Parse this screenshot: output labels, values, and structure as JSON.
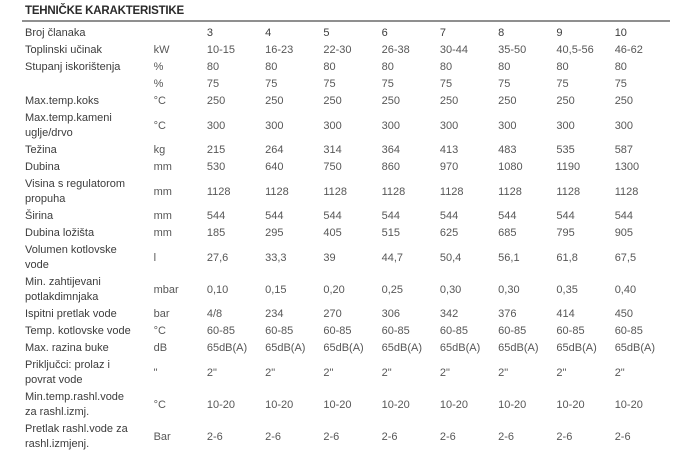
{
  "title": "TEHNIČKE KARAKTERISTIKE",
  "table": {
    "header": {
      "label": "Broj članaka",
      "unit": "",
      "values": [
        "3",
        "4",
        "5",
        "6",
        "7",
        "8",
        "9",
        "10"
      ]
    },
    "rows": [
      {
        "label": "Toplinski učinak",
        "unit": "kW",
        "values": [
          "10-15",
          "16-23",
          "22-30",
          "26-38",
          "30-44",
          "35-50",
          "40,5-56",
          "46-62"
        ]
      },
      {
        "label": "Stupanj iskorištenja",
        "unit": "%",
        "values": [
          "80",
          "80",
          "80",
          "80",
          "80",
          "80",
          "80",
          "80"
        ]
      },
      {
        "label": "",
        "unit": "%",
        "values": [
          "75",
          "75",
          "75",
          "75",
          "75",
          "75",
          "75",
          "75"
        ]
      },
      {
        "label": "Max.temp.koks",
        "unit": "°C",
        "values": [
          "250",
          "250",
          "250",
          "250",
          "250",
          "250",
          "250",
          "250"
        ]
      },
      {
        "label": "Max.temp.kameni\nuglje/drvo",
        "unit": "°C",
        "values": [
          "300",
          "300",
          "300",
          "300",
          "300",
          "300",
          "300",
          "300"
        ]
      },
      {
        "label": "Težina",
        "unit": "kg",
        "values": [
          "215",
          "264",
          "314",
          "364",
          "413",
          "483",
          "535",
          "587"
        ]
      },
      {
        "label": "Dubina",
        "unit": "mm",
        "values": [
          "530",
          "640",
          "750",
          "860",
          "970",
          "1080",
          "1190",
          "1300"
        ]
      },
      {
        "label": "Visina s regulatorom\npropuha",
        "unit": "mm",
        "values": [
          "1128",
          "1128",
          "1128",
          "1128",
          "1128",
          "1128",
          "1128",
          "1128"
        ]
      },
      {
        "label": "Širina",
        "unit": "mm",
        "values": [
          "544",
          "544",
          "544",
          "544",
          "544",
          "544",
          "544",
          "544"
        ]
      },
      {
        "label": "Dubina ložišta",
        "unit": "mm",
        "values": [
          "185",
          "295",
          "405",
          "515",
          "625",
          "685",
          "795",
          "905"
        ]
      },
      {
        "label": "Volumen kotlovske\nvode",
        "unit": "l",
        "values": [
          "27,6",
          "33,3",
          "39",
          "44,7",
          "50,4",
          "56,1",
          "61,8",
          "67,5"
        ]
      },
      {
        "label": "Min. zahtijevani\npotlakdimnjaka",
        "unit": "mbar",
        "values": [
          "0,10",
          "0,15",
          "0,20",
          "0,25",
          "0,30",
          "0,30",
          "0,35",
          "0,40"
        ]
      },
      {
        "label": "Ispitni pretlak vode",
        "unit": "bar",
        "values": [
          "4/8",
          "234",
          "270",
          "306",
          "342",
          "376",
          "414",
          "450"
        ]
      },
      {
        "label": "Temp. kotlovske vode",
        "unit": "°C",
        "values": [
          "60-85",
          "60-85",
          "60-85",
          "60-85",
          "60-85",
          "60-85",
          "60-85",
          "60-85"
        ]
      },
      {
        "label": "Max. razina buke",
        "unit": "dB",
        "values": [
          "65dB(A)",
          "65dB(A)",
          "65dB(A)",
          "65dB(A)",
          "65dB(A)",
          "65dB(A)",
          "65dB(A)",
          "65dB(A)"
        ]
      },
      {
        "label": "Priključci: prolaz i\npovrat vode",
        "unit": "\"",
        "values": [
          "2\"",
          "2\"",
          "2\"",
          "2\"",
          "2\"",
          "2\"",
          "2\"",
          "2\""
        ]
      },
      {
        "label": "Min.temp.rashl.vode\nza rashl.izmj.",
        "unit": "°C",
        "values": [
          "10-20",
          "10-20",
          "10-20",
          "10-20",
          "10-20",
          "10-20",
          "10-20",
          "10-20"
        ]
      },
      {
        "label": "Pretlak rashl.vode za\nrashl.izmjenj.",
        "unit": "Bar",
        "values": [
          "2-6",
          "2-6",
          "2-6",
          "2-6",
          "2-6",
          "2-6",
          "2-6",
          "2-6"
        ]
      }
    ]
  }
}
